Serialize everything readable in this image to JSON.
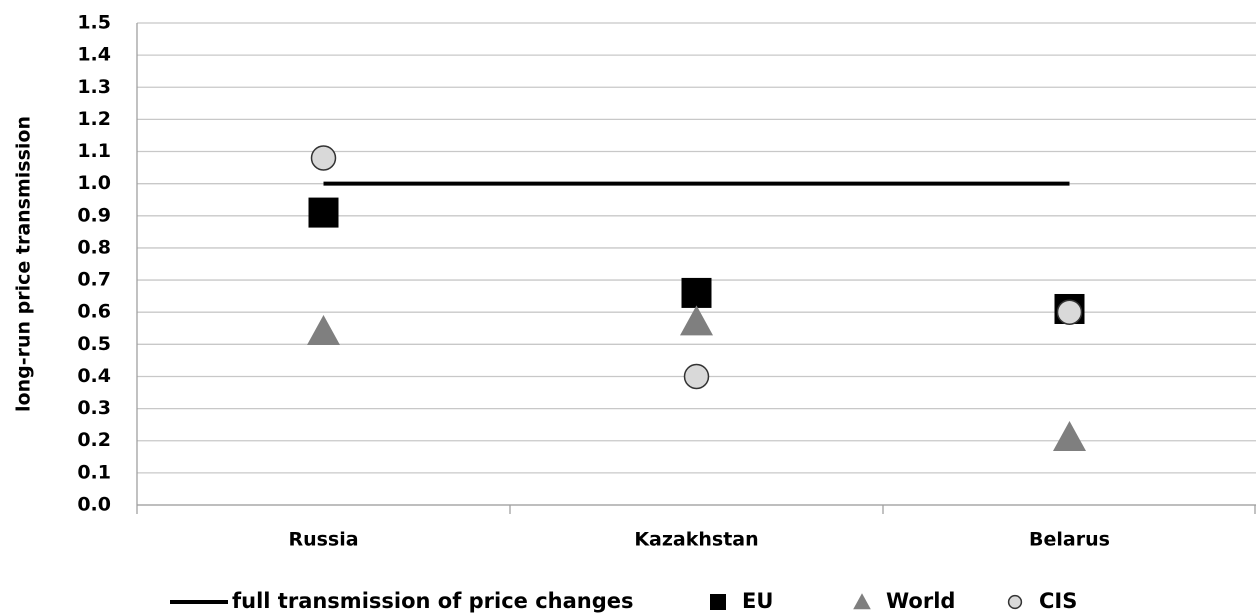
{
  "chart_data": {
    "type": "line",
    "y_label": "long-run price transmission",
    "categories": [
      "Russia",
      "Kazakhstan",
      "Belarus"
    ],
    "series": [
      {
        "name": "full transmission of price changes",
        "color": "#000000",
        "marker": "none",
        "line": true,
        "values": [
          1.0,
          1.0,
          1.0
        ]
      },
      {
        "name": "EU",
        "color": "#000000",
        "marker": "square",
        "line": false,
        "values": [
          0.91,
          0.66,
          0.61
        ]
      },
      {
        "name": "World",
        "color": "#7f7f7f",
        "marker": "triangle",
        "line": false,
        "values": [
          0.54,
          0.57,
          0.21
        ]
      },
      {
        "name": "CIS",
        "color": "#d9d9d9",
        "marker": "circle",
        "line": false,
        "values": [
          1.08,
          0.4,
          0.6
        ]
      }
    ],
    "ylim": [
      0,
      1.5
    ],
    "yticks": [
      {
        "value": 0,
        "label": "0.0"
      },
      0.1,
      0.2,
      0.3,
      0.4,
      0.5,
      0.6,
      0.7,
      0.8,
      0.9,
      {
        "value": 1,
        "label": "1.0"
      },
      1.1,
      1.2,
      1.3,
      1.4,
      1.5
    ],
    "grid": true,
    "legend": "bottom"
  }
}
